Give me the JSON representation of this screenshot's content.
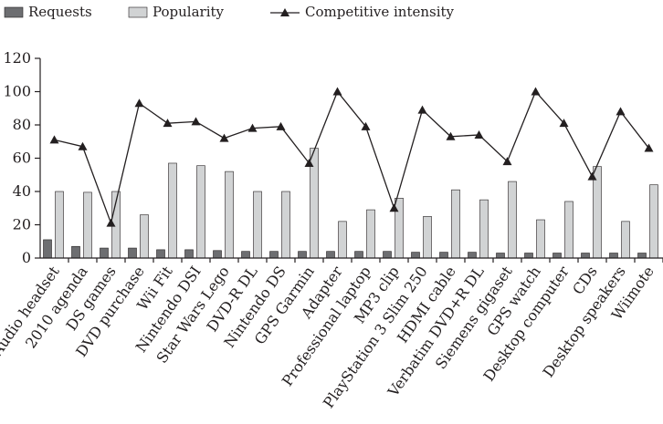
{
  "chart_data": {
    "type": "bar",
    "title": "",
    "xlabel": "",
    "ylabel": "",
    "ylim": [
      0,
      120
    ],
    "yticks": [
      0,
      20,
      40,
      60,
      80,
      100,
      120
    ],
    "grid": false,
    "legend_position": "top-left",
    "categories": [
      "Audio headset",
      "2010 agenda",
      "DS games",
      "DVD purchase",
      "Wii Fit",
      "Nintendo DSI",
      "Star Wars Lego",
      "DVD-R DL",
      "Nintendo DS",
      "GPS Garmin",
      "Adapter",
      "Professional laptop",
      "MP3 clip",
      "PlayStation 3 Slim 250",
      "HDMI cable",
      "Verbatim DVD+R DL",
      "Siemens gigaset",
      "GPS watch",
      "Desktop computer",
      "CDs",
      "Desktop speakers",
      "Wiimote"
    ],
    "series": [
      {
        "name": "Requests",
        "type": "bar",
        "color": "#6d6e71",
        "values": [
          11,
          7,
          6,
          6,
          5,
          5,
          4.5,
          4,
          4,
          4,
          4,
          4,
          4,
          3.5,
          3.5,
          3.5,
          3,
          3,
          3,
          3,
          3,
          3
        ]
      },
      {
        "name": "Popularity",
        "type": "bar",
        "color": "#d1d3d4",
        "values": [
          40,
          39.5,
          40,
          26,
          57,
          55.5,
          52,
          40,
          40,
          66,
          22,
          29,
          36,
          25,
          41,
          35,
          46,
          23,
          34,
          55,
          22,
          44
        ]
      },
      {
        "name": "Competitive intensity",
        "type": "line",
        "color": "#231f20",
        "marker": "triangle",
        "values": [
          71,
          67,
          21,
          93,
          81,
          82,
          72,
          78,
          79,
          57,
          100,
          79,
          30,
          89,
          73,
          74,
          58,
          100,
          81,
          49,
          88,
          66
        ]
      }
    ]
  }
}
